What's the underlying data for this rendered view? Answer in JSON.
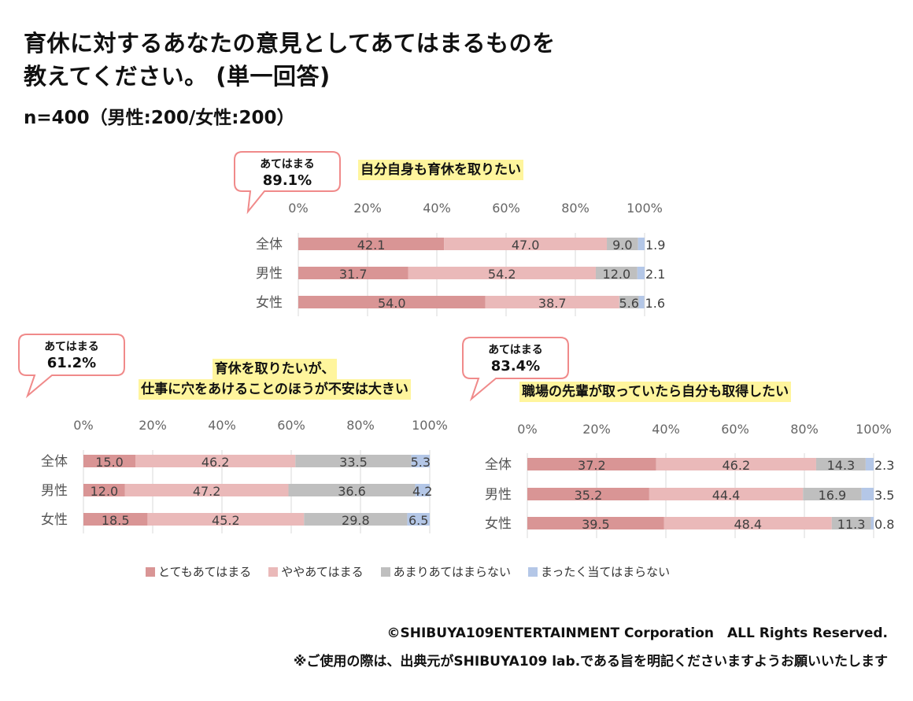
{
  "header": {
    "title_line1": "育休に対するあなたの意見としてあてはまるものを",
    "title_line2": "教えてください。 (単一回答)",
    "sample": "n=400（男性:200/女性:200）"
  },
  "colors": {
    "very": "#d99595",
    "somewhat": "#eab9b9",
    "not_much": "#bfbfbf",
    "not_at_all": "#b4c7e7",
    "callout_border": "#f08a8a",
    "highlight": "#fff59d"
  },
  "chart_data": [
    {
      "type": "bar",
      "orientation": "horizontal-stacked-100",
      "title": "自分自身も育休を取りたい",
      "callout": {
        "label": "あてはまる",
        "value": "89.1%"
      },
      "categories": [
        "全体",
        "男性",
        "女性"
      ],
      "xticks": [
        "0%",
        "20%",
        "40%",
        "60%",
        "80%",
        "100%"
      ],
      "xlim": [
        0,
        100
      ],
      "series": [
        {
          "name": "とてもあてはまる",
          "values": [
            42.1,
            31.7,
            54.0
          ]
        },
        {
          "name": "ややあてはまる",
          "values": [
            47.0,
            54.2,
            38.7
          ]
        },
        {
          "name": "あまりあてはまらない",
          "values": [
            9.0,
            12.0,
            5.6
          ]
        },
        {
          "name": "まったく当てはまらない",
          "values": [
            1.9,
            2.1,
            1.6
          ]
        }
      ]
    },
    {
      "type": "bar",
      "orientation": "horizontal-stacked-100",
      "title": "育休を取りたいが、\n仕事に穴をあけることのほうが不安は大きい",
      "title_line1": "育休を取りたいが、",
      "title_line2": "仕事に穴をあけることのほうが不安は大きい",
      "callout": {
        "label": "あてはまる",
        "value": "61.2%"
      },
      "categories": [
        "全体",
        "男性",
        "女性"
      ],
      "xticks": [
        "0%",
        "20%",
        "40%",
        "60%",
        "80%",
        "100%"
      ],
      "xlim": [
        0,
        100
      ],
      "series": [
        {
          "name": "とてもあてはまる",
          "values": [
            15.0,
            12.0,
            18.5
          ]
        },
        {
          "name": "ややあてはまる",
          "values": [
            46.2,
            47.2,
            45.2
          ]
        },
        {
          "name": "あまりあてはまらない",
          "values": [
            33.5,
            36.6,
            29.8
          ]
        },
        {
          "name": "まったく当てはまらない",
          "values": [
            5.3,
            4.2,
            6.5
          ]
        }
      ]
    },
    {
      "type": "bar",
      "orientation": "horizontal-stacked-100",
      "title": "職場の先輩が取っていたら自分も取得したい",
      "callout": {
        "label": "あてはまる",
        "value": "83.4%"
      },
      "categories": [
        "全体",
        "男性",
        "女性"
      ],
      "xticks": [
        "0%",
        "20%",
        "40%",
        "60%",
        "80%",
        "100%"
      ],
      "xlim": [
        0,
        100
      ],
      "series": [
        {
          "name": "とてもあてはまる",
          "values": [
            37.2,
            35.2,
            39.5
          ]
        },
        {
          "name": "ややあてはまる",
          "values": [
            46.2,
            44.4,
            48.4
          ]
        },
        {
          "name": "あまりあてはまらない",
          "values": [
            14.3,
            16.9,
            11.3
          ]
        },
        {
          "name": "まったく当てはまらない",
          "values": [
            2.3,
            3.5,
            0.8
          ]
        }
      ]
    }
  ],
  "legend": [
    "とてもあてはまる",
    "ややあてはまる",
    "あまりあてはまらない",
    "まったく当てはまらない"
  ],
  "footer": {
    "copyright": "©SHIBUYA109ENTERTAINMENT Corporation　ALL Rights Reserved.",
    "note": "※ご使用の際は、出典元がSHIBUYA109 lab.である旨を明記くださいますようお願いいたします"
  }
}
